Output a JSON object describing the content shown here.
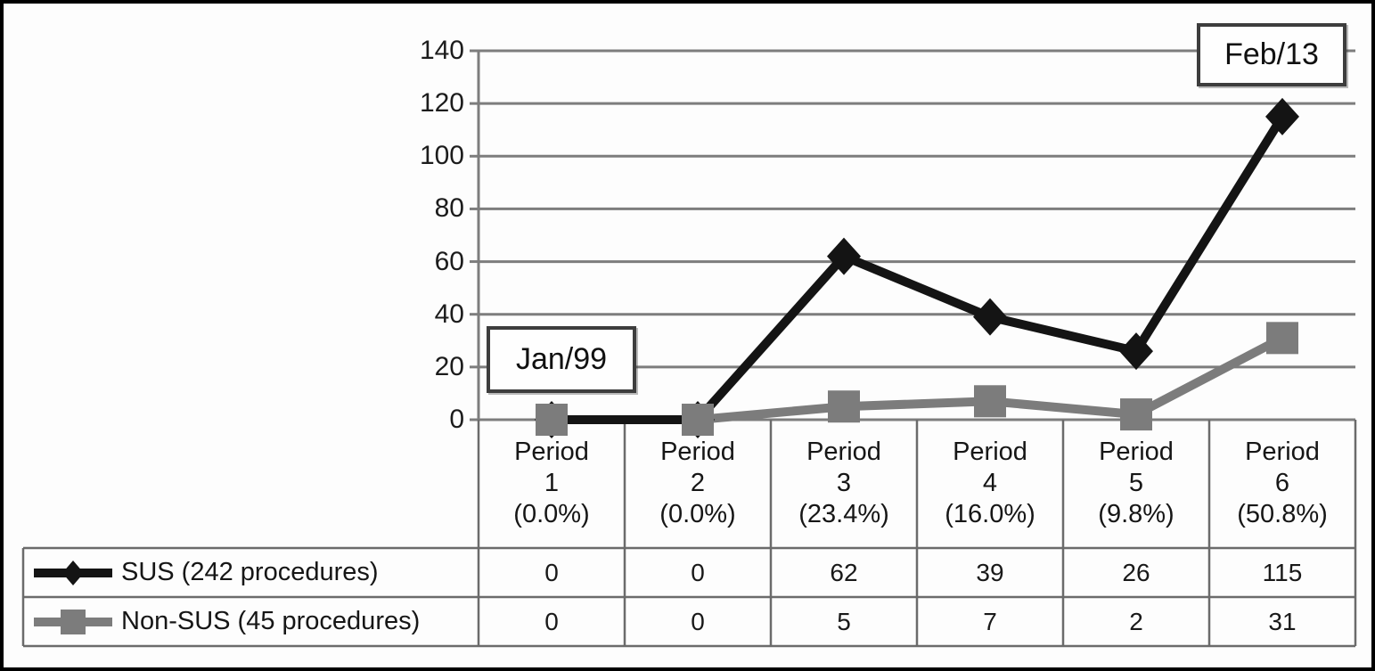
{
  "figure": {
    "description": "Line chart of procedures per period with data table",
    "background": "#fdfdfd",
    "border_color": "#000000"
  },
  "chart_data": {
    "type": "line",
    "categories": [
      "Period 1",
      "Period 2",
      "Period 3",
      "Period 4",
      "Period 5",
      "Period 6"
    ],
    "category_percentages": [
      "(0.0%)",
      "(0.0%)",
      "(23.4%)",
      "(16.0%)",
      "(9.8%)",
      "(50.8%)"
    ],
    "series": [
      {
        "name": "SUS (242 procedures)",
        "marker": "diamond",
        "color": "#141414",
        "values": [
          0,
          0,
          62,
          39,
          26,
          115
        ]
      },
      {
        "name": "Non-SUS (45 procedures)",
        "marker": "square",
        "color": "#7c7c7c",
        "values": [
          0,
          0,
          5,
          7,
          2,
          31
        ]
      }
    ],
    "ylim": [
      0,
      140
    ],
    "yticks": [
      0,
      20,
      40,
      60,
      80,
      100,
      120,
      140
    ],
    "grid": true,
    "legend_position": "bottom-left of table",
    "annotations": [
      {
        "text": "Jan/99",
        "anchor": "Period 1, near y=20"
      },
      {
        "text": "Feb/13",
        "anchor": "Period 6, near y=140"
      }
    ]
  },
  "colors": {
    "gridline": "#7d7d7d",
    "table_border": "#6b6b6b",
    "sus_series": "#141414",
    "non_sus_series": "#7c7c7c",
    "annotation_border": "#3d3d3d"
  }
}
